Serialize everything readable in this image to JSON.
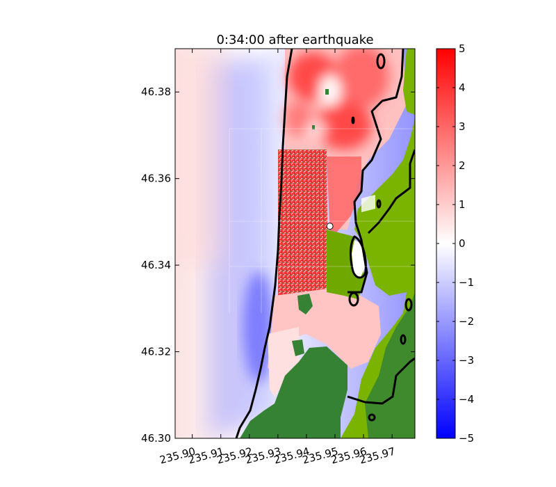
{
  "chart_data": {
    "type": "heatmap",
    "title": "0:34:00 after earthquake",
    "xlabel": "",
    "ylabel": "",
    "xlim": [
      235.894,
      235.978
    ],
    "ylim": [
      46.3,
      46.39
    ],
    "x_ticks": [
      "235.90",
      "235.91",
      "235.92",
      "235.93",
      "235.94",
      "235.95",
      "235.96",
      "235.97"
    ],
    "x_tick_values": [
      235.9,
      235.91,
      235.92,
      235.93,
      235.94,
      235.95,
      235.96,
      235.97
    ],
    "y_ticks": [
      "46.30",
      "46.32",
      "46.34",
      "46.36",
      "46.38"
    ],
    "y_tick_values": [
      46.3,
      46.32,
      46.34,
      46.36,
      46.38
    ],
    "colorbar": {
      "min": -5,
      "max": 5,
      "ticks": [
        "−5",
        "−4",
        "−3",
        "−2",
        "−1",
        "0",
        "1",
        "2",
        "3",
        "4",
        "5"
      ],
      "tick_values": [
        -5,
        -4,
        -3,
        -2,
        -1,
        0,
        1,
        2,
        3,
        4,
        5
      ],
      "colors": {
        "low": "#0000ff",
        "mid": "#ffffff",
        "high": "#ff0000"
      }
    },
    "colors": {
      "dry_land_dark": "#358235",
      "dry_land_light": "#7ab400",
      "shoreline_contour": "#000000"
    },
    "gauge_marker": {
      "x": 235.9482,
      "y": 46.349
    }
  }
}
